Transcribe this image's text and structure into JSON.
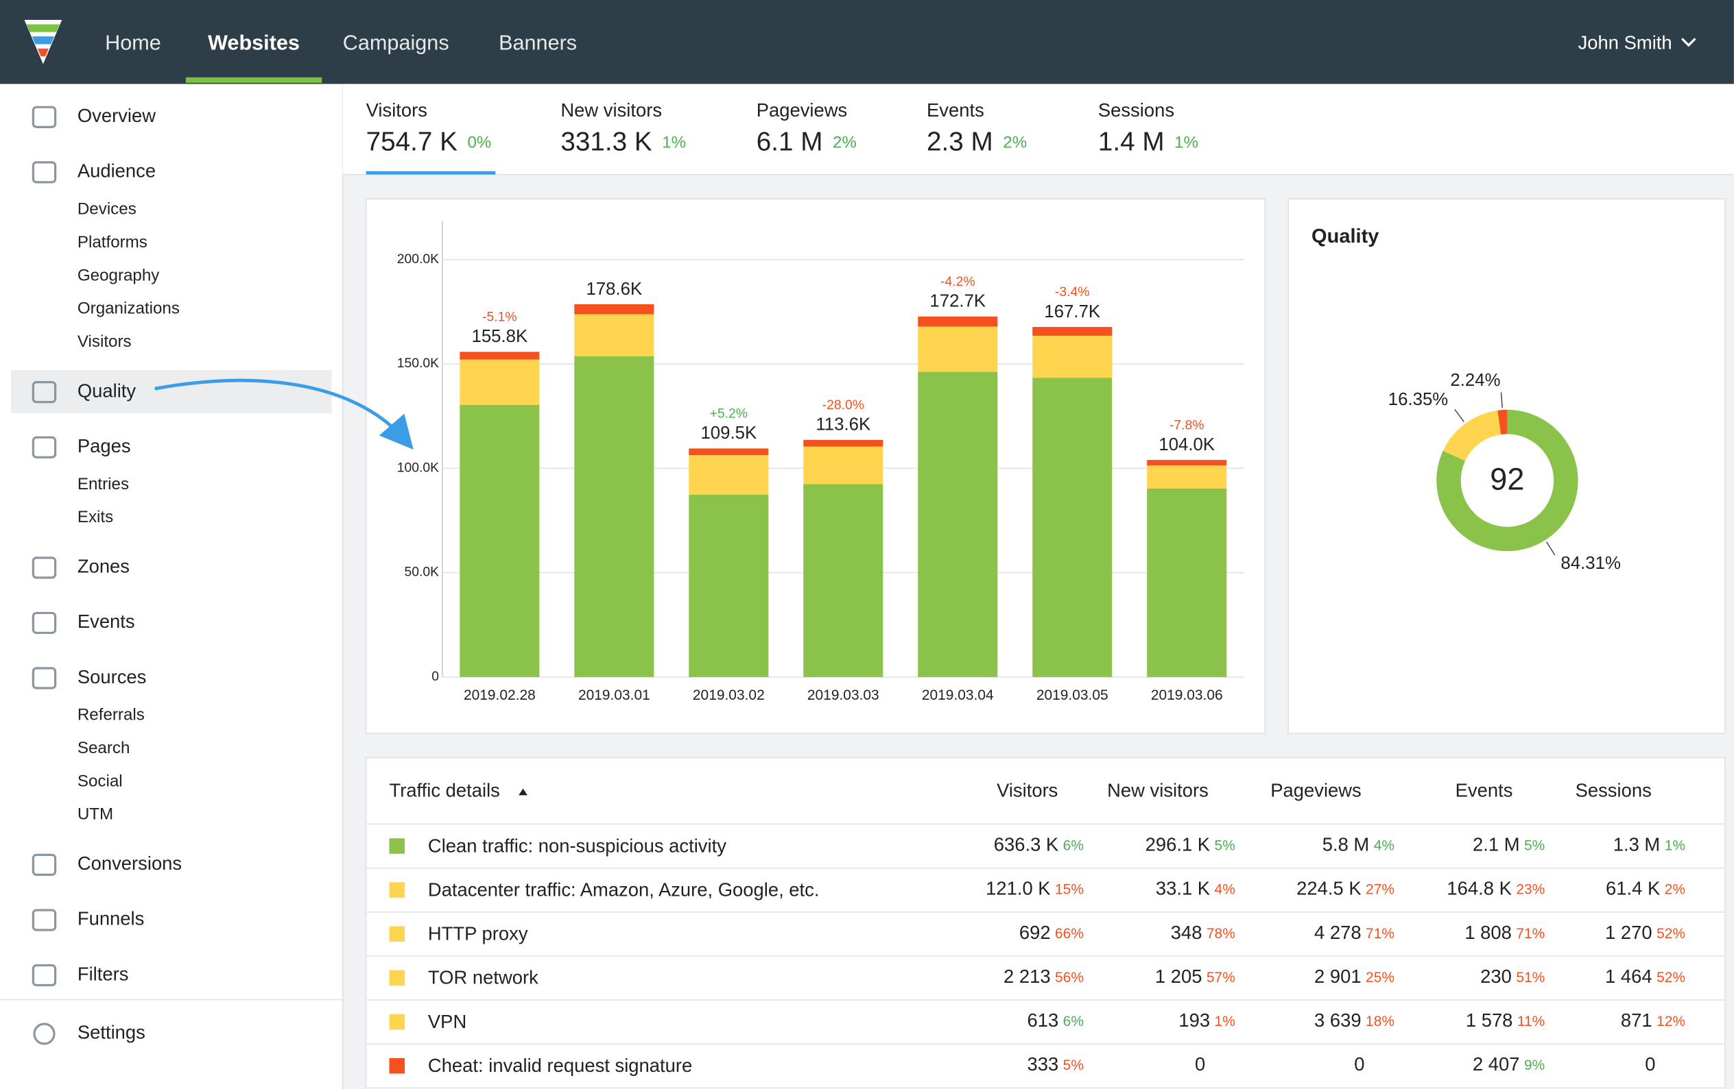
{
  "nav": {
    "items": [
      "Home",
      "Websites",
      "Campaigns",
      "Banners"
    ],
    "active": 1,
    "user": "John Smith"
  },
  "sidebar": {
    "items": [
      {
        "label": "Overview"
      },
      {
        "label": "Audience",
        "children": [
          "Devices",
          "Platforms",
          "Geography",
          "Organizations",
          "Visitors"
        ]
      },
      {
        "label": "Quality"
      },
      {
        "label": "Pages",
        "children": [
          "Entries",
          "Exits"
        ]
      },
      {
        "label": "Zones"
      },
      {
        "label": "Events"
      },
      {
        "label": "Sources",
        "children": [
          "Referrals",
          "Search",
          "Social",
          "UTM"
        ]
      },
      {
        "label": "Conversions"
      },
      {
        "label": "Funnels"
      },
      {
        "label": "Filters"
      }
    ],
    "settings": "Settings",
    "active": 2
  },
  "stats": [
    {
      "label": "Visitors",
      "value": "754.7 K",
      "change": "0%"
    },
    {
      "label": "New visitors",
      "value": "331.3 K",
      "change": "1%"
    },
    {
      "label": "Pageviews",
      "value": "6.1 M",
      "change": "2%"
    },
    {
      "label": "Events",
      "value": "2.3 M",
      "change": "2%"
    },
    {
      "label": "Sessions",
      "value": "1.4 M",
      "change": "1%"
    }
  ],
  "bar_chart": {
    "type": "bar",
    "stacked": true,
    "categories": [
      "2019.02.28",
      "2019.03.01",
      "2019.03.02",
      "2019.03.03",
      "2019.03.04",
      "2019.03.05",
      "2019.03.06"
    ],
    "series": [
      {
        "color": "#8bc34a",
        "values": [
          130400,
          153700,
          87300,
          92400,
          146200,
          143400,
          90300
        ]
      },
      {
        "color": "#ffd54f",
        "values": [
          21700,
          20100,
          19000,
          18000,
          21700,
          20100,
          11100
        ]
      },
      {
        "color": "#f4511e",
        "values": [
          3700,
          4800,
          3200,
          3200,
          4800,
          4200,
          2600
        ]
      }
    ],
    "totals": [
      155800,
      178600,
      109500,
      113600,
      172700,
      167700,
      104000
    ],
    "total_labels": [
      "155.8K",
      "178.6K",
      "109.5K",
      "113.6K",
      "172.7K",
      "167.7K",
      "104.0K"
    ],
    "changes": [
      "-5.1%",
      null,
      "+5.2%",
      "-28.0%",
      "-4.2%",
      "-3.4%",
      "-7.8%"
    ],
    "ylim": [
      0,
      200000
    ],
    "yticks": [
      0,
      {
        "value": 50000,
        "label": "50.0K"
      },
      {
        "value": 100000,
        "label": "100.0K"
      },
      {
        "value": 150000,
        "label": "150.0K"
      },
      {
        "value": 200000,
        "label": "200.0K"
      }
    ],
    "grid": true
  },
  "quality": {
    "title": "Quality",
    "score": 92,
    "type": "pie",
    "values": [
      84.31,
      16.35,
      2.24
    ],
    "value_labels": [
      "84.31%",
      "16.35%",
      "2.24%"
    ],
    "colors": [
      "#8bc34a",
      "#ffd54f",
      "#f4511e"
    ]
  },
  "table": {
    "header": [
      "Traffic details",
      "Visitors",
      "New visitors",
      "Pageviews",
      "Events",
      "Sessions"
    ],
    "rows": [
      {
        "label": "Clean traffic: non-suspicious activity",
        "color": "#8bc34a",
        "cells": [
          {
            "value": "636.3 K",
            "change": "6%",
            "color": "#4caf50"
          },
          {
            "value": "296.1 K",
            "change": "5%",
            "color": "#4caf50"
          },
          {
            "value": "5.8 M",
            "change": "4%",
            "color": "#4caf50"
          },
          {
            "value": "2.1 M",
            "change": "5%",
            "color": "#4caf50"
          },
          {
            "value": "1.3 M",
            "change": "1%",
            "color": "#4caf50"
          }
        ]
      },
      {
        "label": "Datacenter traffic: Amazon, Azure, Google, etc.",
        "color": "#ffd54f",
        "cells": [
          {
            "value": "121.0 K",
            "change": "15%",
            "color": "#f4511e"
          },
          {
            "value": "33.1 K",
            "change": "4%",
            "color": "#f4511e"
          },
          {
            "value": "224.5 K",
            "change": "27%",
            "color": "#f4511e"
          },
          {
            "value": "164.8 K",
            "change": "23%",
            "color": "#f4511e"
          },
          {
            "value": "61.4 K",
            "change": "2%",
            "color": "#f4511e"
          }
        ]
      },
      {
        "label": "HTTP proxy",
        "color": "#ffd54f",
        "cells": [
          {
            "value": "692",
            "change": "66%",
            "color": "#f4511e"
          },
          {
            "value": "348",
            "change": "78%",
            "color": "#f4511e"
          },
          {
            "value": "4 278",
            "change": "71%",
            "color": "#f4511e"
          },
          {
            "value": "1 808",
            "change": "71%",
            "color": "#f4511e"
          },
          {
            "value": "1 270",
            "change": "52%",
            "color": "#f4511e"
          }
        ]
      },
      {
        "label": "TOR network",
        "color": "#ffd54f",
        "cells": [
          {
            "value": "2 213",
            "change": "56%",
            "color": "#f4511e"
          },
          {
            "value": "1 205",
            "change": "57%",
            "color": "#f4511e"
          },
          {
            "value": "2 901",
            "change": "25%",
            "color": "#f4511e"
          },
          {
            "value": "230",
            "change": "51%",
            "color": "#f4511e"
          },
          {
            "value": "1 464",
            "change": "52%",
            "color": "#f4511e"
          }
        ]
      },
      {
        "label": "VPN",
        "color": "#ffd54f",
        "cells": [
          {
            "value": "613",
            "change": "6%",
            "color": "#4caf50"
          },
          {
            "value": "193",
            "change": "1%",
            "color": "#f4511e"
          },
          {
            "value": "3 639",
            "change": "18%",
            "color": "#f4511e"
          },
          {
            "value": "1 578",
            "change": "11%",
            "color": "#f4511e"
          },
          {
            "value": "871",
            "change": "12%",
            "color": "#f4511e"
          }
        ]
      },
      {
        "label": "Cheat: invalid request signature",
        "color": "#f4511e",
        "cells": [
          {
            "value": "333",
            "change": "5%",
            "color": "#f4511e"
          },
          {
            "value": "0"
          },
          {
            "value": "0"
          },
          {
            "value": "2 407",
            "change": "9%",
            "color": "#4caf50"
          },
          {
            "value": "0"
          }
        ]
      }
    ]
  }
}
